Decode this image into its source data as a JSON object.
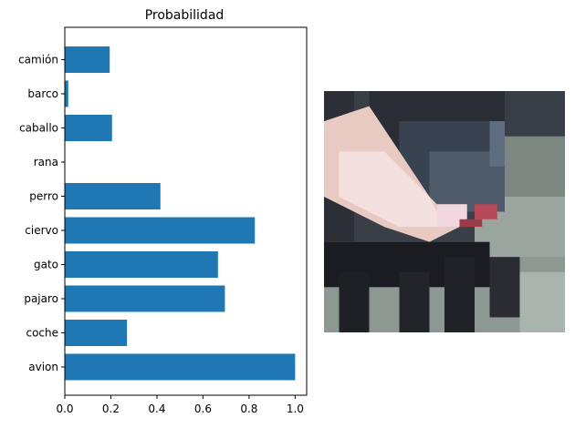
{
  "chart_data": {
    "type": "bar",
    "orientation": "horizontal",
    "title": "Probabilidad",
    "xlabel": "",
    "ylabel": "",
    "categories": [
      "avion",
      "coche",
      "pajaro",
      "gato",
      "ciervo",
      "perro",
      "rana",
      "caballo",
      "barco",
      "camión"
    ],
    "values": [
      1.0,
      0.27,
      0.695,
      0.665,
      0.825,
      0.415,
      0.0,
      0.205,
      0.015,
      0.195
    ],
    "xlim": [
      0,
      1.05
    ],
    "xticks": [
      "0.0",
      "0.2",
      "0.4",
      "0.6",
      "0.8",
      "1.0"
    ],
    "grid": false,
    "bar_color": "#1f77b4"
  },
  "image_panel": {
    "kind": "low-resolution photo of a dark animal",
    "palette": [
      "#2b2d33",
      "#1c1d22",
      "#4a5666",
      "#6f7a86",
      "#a8b0ac",
      "#e9c9c4",
      "#f3dede",
      "#b84a57",
      "#8a9691"
    ]
  }
}
